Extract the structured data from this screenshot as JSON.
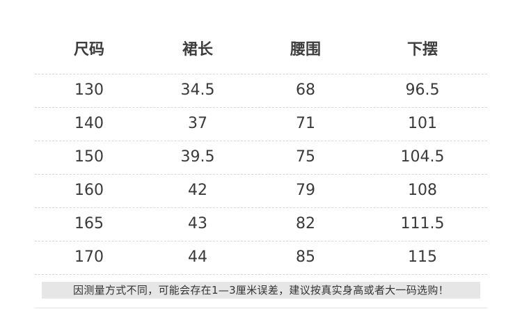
{
  "table": {
    "headers": [
      "尺码",
      "裙长",
      "腰围",
      "下摆"
    ],
    "rows": [
      [
        "130",
        "34.5",
        "68",
        "96.5"
      ],
      [
        "140",
        "37",
        "71",
        "101"
      ],
      [
        "150",
        "39.5",
        "75",
        "104.5"
      ],
      [
        "160",
        "42",
        "79",
        "108"
      ],
      [
        "165",
        "43",
        "82",
        "111.5"
      ],
      [
        "170",
        "44",
        "85",
        "115"
      ]
    ]
  },
  "note": "因测量方式不同，可能会存在1—3厘米误差，建议按真实身高或者大一码选购！"
}
